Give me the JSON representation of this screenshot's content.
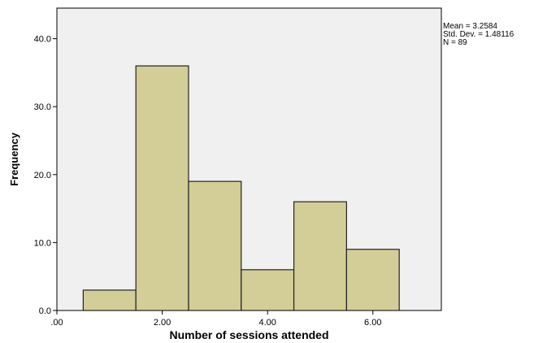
{
  "chart_data": {
    "type": "bar",
    "subtype": "histogram",
    "xlabel": "Number of sessions attended",
    "ylabel": "Frequency",
    "bins": [
      {
        "center": 1,
        "count": 3
      },
      {
        "center": 2,
        "count": 36
      },
      {
        "center": 3,
        "count": 19
      },
      {
        "center": 4,
        "count": 6
      },
      {
        "center": 5,
        "count": 16
      },
      {
        "center": 6,
        "count": 9
      }
    ],
    "bin_width": 1,
    "xlim": [
      0,
      7.3
    ],
    "ylim": [
      0,
      44.5
    ],
    "x_ticks": [
      0,
      2,
      4,
      6
    ],
    "x_tick_labels": [
      ".00",
      "2.00",
      "4.00",
      "6.00"
    ],
    "y_ticks": [
      0,
      10,
      20,
      30,
      40
    ],
    "y_tick_labels": [
      "0.0",
      "10.0",
      "20.0",
      "30.0",
      "40.0"
    ],
    "grid": false,
    "colors": {
      "plot_background": "#f0f0f0",
      "bar_fill": "#d3ce97",
      "bar_stroke": "#222222"
    }
  },
  "stats": {
    "mean": "Mean = 3.2584",
    "std_dev": "Std. Dev. = 1.48116",
    "n": "N = 89"
  }
}
